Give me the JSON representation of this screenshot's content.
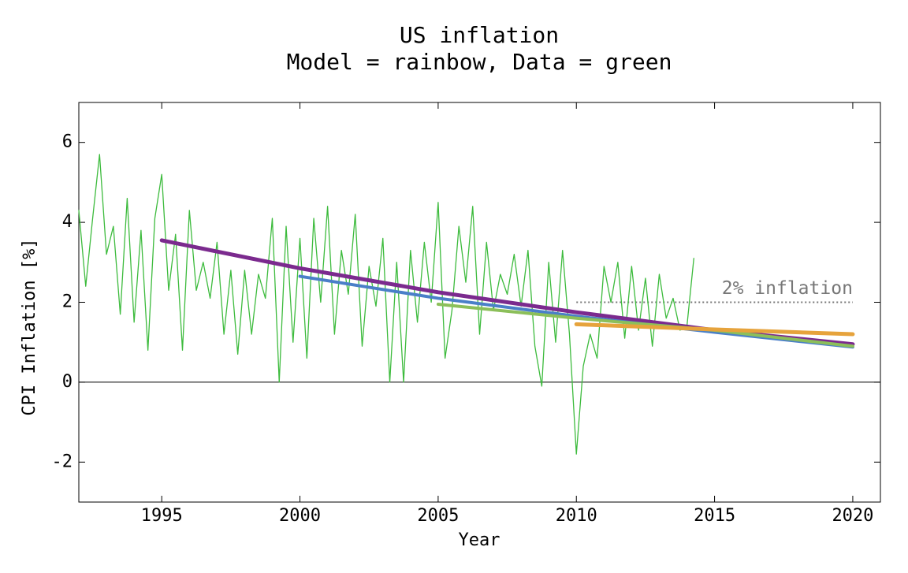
{
  "chart_data": {
    "type": "line",
    "title": "US inflation",
    "subtitle": "Model = rainbow, Data = green",
    "xlabel": "Year",
    "ylabel": "CPI Inflation [%]",
    "xlim": [
      1992,
      2021
    ],
    "ylim": [
      -3,
      7
    ],
    "xticks": [
      1995,
      2000,
      2005,
      2010,
      2015,
      2020
    ],
    "yticks": [
      -2,
      0,
      2,
      4,
      6
    ],
    "reference": {
      "label": "2% inflation",
      "value": 2,
      "x": [
        2010,
        2020
      ],
      "color": "#777777"
    },
    "series": [
      {
        "color": "#3dbb3d",
        "width": 1.3,
        "x": [
          1992,
          1992.25,
          1992.5,
          1992.75,
          1993,
          1993.25,
          1993.5,
          1993.75,
          1994,
          1994.25,
          1994.5,
          1994.75,
          1995,
          1995.25,
          1995.5,
          1995.75,
          1996,
          1996.25,
          1996.5,
          1996.75,
          1997,
          1997.25,
          1997.5,
          1997.75,
          1998,
          1998.25,
          1998.5,
          1998.75,
          1999,
          1999.25,
          1999.5,
          1999.75,
          2000,
          2000.25,
          2000.5,
          2000.75,
          2001,
          2001.25,
          2001.5,
          2001.75,
          2002,
          2002.25,
          2002.5,
          2002.75,
          2003,
          2003.25,
          2003.5,
          2003.75,
          2004,
          2004.25,
          2004.5,
          2004.75,
          2005,
          2005.25,
          2005.5,
          2005.75,
          2006,
          2006.25,
          2006.5,
          2006.75,
          2007,
          2007.25,
          2007.5,
          2007.75,
          2008,
          2008.25,
          2008.5,
          2008.75,
          2009,
          2009.25,
          2009.5,
          2009.75,
          2010,
          2010.25,
          2010.5,
          2010.75,
          2011,
          2011.25,
          2011.5,
          2011.75,
          2012,
          2012.25,
          2012.5,
          2012.75,
          2013,
          2013.25,
          2013.5,
          2013.75,
          2014,
          2014.25
        ],
        "values": [
          4.3,
          2.4,
          4.1,
          5.7,
          3.2,
          3.9,
          1.7,
          4.6,
          1.5,
          3.8,
          0.8,
          4.1,
          5.2,
          2.3,
          3.7,
          0.8,
          4.3,
          2.3,
          3.0,
          2.1,
          3.5,
          1.2,
          2.8,
          0.7,
          2.8,
          1.2,
          2.7,
          2.1,
          4.1,
          0.0,
          3.9,
          1.0,
          3.6,
          0.6,
          4.1,
          2.0,
          4.4,
          1.2,
          3.3,
          2.2,
          4.2,
          0.9,
          2.9,
          1.9,
          3.6,
          0.0,
          3.0,
          0.0,
          3.3,
          1.5,
          3.5,
          2.0,
          4.5,
          0.6,
          1.8,
          3.9,
          2.5,
          4.4,
          1.2,
          3.5,
          1.8,
          2.7,
          2.2,
          3.2,
          1.9,
          3.3,
          0.9,
          -0.1,
          3.0,
          1.0,
          3.3,
          1.2,
          -1.8,
          0.4,
          1.2,
          0.6,
          2.9,
          2.0,
          3.0,
          1.1,
          2.9,
          1.3,
          2.6,
          0.9,
          2.7,
          1.6,
          2.1,
          1.3,
          1.4,
          3.1
        ]
      },
      {
        "color": "#7b2a8e",
        "width": 5,
        "x": [
          1995,
          2000,
          2005,
          2010,
          2015,
          2020
        ],
        "values": [
          3.55,
          2.85,
          2.25,
          1.75,
          1.3,
          0.95
        ]
      },
      {
        "color": "#4a7fc8",
        "width": 4,
        "x": [
          2000,
          2005,
          2010,
          2015,
          2020
        ],
        "values": [
          2.65,
          2.1,
          1.65,
          1.25,
          0.88
        ]
      },
      {
        "color": "#8cbf5a",
        "width": 4,
        "x": [
          2005,
          2010,
          2015,
          2020
        ],
        "values": [
          1.95,
          1.6,
          1.3,
          0.9
        ]
      },
      {
        "color": "#e6a33c",
        "width": 5,
        "x": [
          2010,
          2015,
          2020
        ],
        "values": [
          1.45,
          1.32,
          1.2
        ]
      }
    ]
  }
}
